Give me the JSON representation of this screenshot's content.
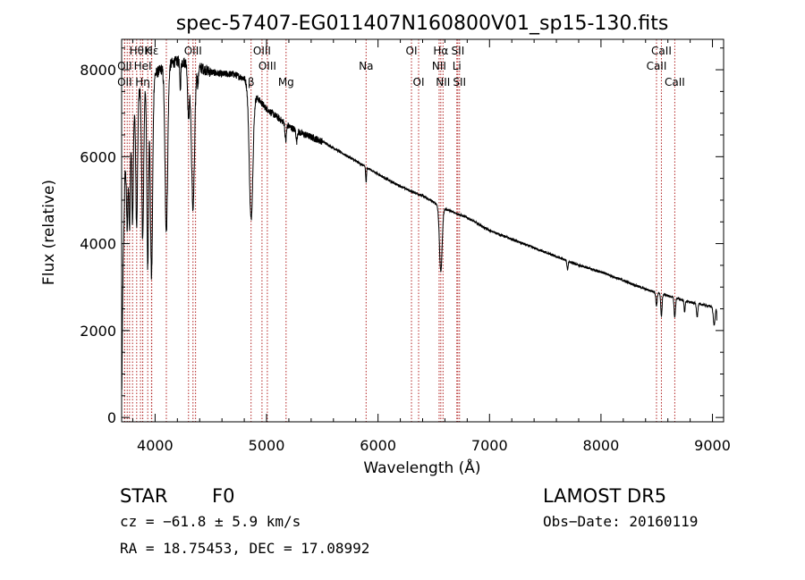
{
  "chart_data": {
    "type": "line",
    "title": "spec-57407-EG011407N160800V01_sp15-130.fits",
    "xlabel": "Wavelength (Å)",
    "ylabel": "Flux (relative)",
    "xlim": [
      3700,
      9100
    ],
    "ylim": [
      -100,
      8700
    ],
    "x_ticks": [
      "4000",
      "5000",
      "6000",
      "7000",
      "8000",
      "9000"
    ],
    "x_tick_values": [
      4000,
      5000,
      6000,
      7000,
      8000,
      9000
    ],
    "y_ticks": [
      "0",
      "2000",
      "4000",
      "6000",
      "8000"
    ],
    "y_tick_values": [
      0,
      2000,
      4000,
      6000,
      8000
    ],
    "continuum": [
      [
        3700,
        0
      ],
      [
        3710,
        3000
      ],
      [
        3730,
        5600
      ],
      [
        3760,
        6000
      ],
      [
        3800,
        7100
      ],
      [
        3850,
        7500
      ],
      [
        3900,
        7700
      ],
      [
        3950,
        7800
      ],
      [
        4000,
        7900
      ],
      [
        4100,
        8100
      ],
      [
        4200,
        8200
      ],
      [
        4300,
        8150
      ],
      [
        4400,
        8050
      ],
      [
        4500,
        7950
      ],
      [
        4600,
        7900
      ],
      [
        4700,
        7900
      ],
      [
        4800,
        7800
      ],
      [
        4900,
        7400
      ],
      [
        5000,
        7100
      ],
      [
        5100,
        6900
      ],
      [
        5200,
        6700
      ],
      [
        5300,
        6550
      ],
      [
        5400,
        6450
      ],
      [
        5500,
        6350
      ],
      [
        5600,
        6200
      ],
      [
        5700,
        6050
      ],
      [
        5800,
        5900
      ],
      [
        5900,
        5750
      ],
      [
        6000,
        5600
      ],
      [
        6100,
        5450
      ],
      [
        6200,
        5320
      ],
      [
        6300,
        5200
      ],
      [
        6400,
        5100
      ],
      [
        6500,
        4950
      ],
      [
        6600,
        4800
      ],
      [
        6700,
        4700
      ],
      [
        6800,
        4600
      ],
      [
        6900,
        4450
      ],
      [
        7000,
        4300
      ],
      [
        7200,
        4100
      ],
      [
        7400,
        3900
      ],
      [
        7600,
        3700
      ],
      [
        7800,
        3500
      ],
      [
        8000,
        3350
      ],
      [
        8200,
        3150
      ],
      [
        8400,
        2950
      ],
      [
        8600,
        2800
      ],
      [
        8800,
        2650
      ],
      [
        9000,
        2550
      ],
      [
        9040,
        2500
      ]
    ],
    "absorption_features": [
      {
        "x": 3750,
        "depth": 1500,
        "width": 6
      },
      {
        "x": 3771,
        "depth": 2000,
        "width": 6
      },
      {
        "x": 3798,
        "depth": 2500,
        "width": 7
      },
      {
        "x": 3835,
        "depth": 3000,
        "width": 8
      },
      {
        "x": 3889,
        "depth": 3500,
        "width": 9
      },
      {
        "x": 3934,
        "depth": 4300,
        "width": 8
      },
      {
        "x": 3968,
        "depth": 4600,
        "width": 10
      },
      {
        "x": 4101,
        "depth": 3800,
        "width": 12
      },
      {
        "x": 4226,
        "depth": 600,
        "width": 5
      },
      {
        "x": 4300,
        "depth": 1200,
        "width": 8
      },
      {
        "x": 4340,
        "depth": 3300,
        "width": 14
      },
      {
        "x": 4384,
        "depth": 400,
        "width": 5
      },
      {
        "x": 4861,
        "depth": 3000,
        "width": 16
      },
      {
        "x": 5172,
        "depth": 400,
        "width": 6
      },
      {
        "x": 5270,
        "depth": 250,
        "width": 5
      },
      {
        "x": 5893,
        "depth": 350,
        "width": 4
      },
      {
        "x": 6563,
        "depth": 1500,
        "width": 12
      },
      {
        "x": 7700,
        "depth": 200,
        "width": 5
      },
      {
        "x": 8498,
        "depth": 300,
        "width": 6
      },
      {
        "x": 8542,
        "depth": 500,
        "width": 6
      },
      {
        "x": 8662,
        "depth": 450,
        "width": 6
      },
      {
        "x": 8750,
        "depth": 250,
        "width": 5
      },
      {
        "x": 8863,
        "depth": 300,
        "width": 6
      },
      {
        "x": 9015,
        "depth": 400,
        "width": 8
      },
      {
        "x": 9045,
        "depth": 1800,
        "width": 3
      }
    ],
    "line_markers": [
      {
        "x": 3727,
        "label": "OII",
        "row": 1
      },
      {
        "x": 3727,
        "label": "OII",
        "row": 2
      },
      {
        "x": 3750,
        "label": "",
        "row": 0
      },
      {
        "x": 3771,
        "label": "",
        "row": 0
      },
      {
        "x": 3798,
        "label": "",
        "row": 0
      },
      {
        "x": 3835,
        "label": "Hθ",
        "row": 0
      },
      {
        "x": 3869,
        "label": "",
        "row": 0
      },
      {
        "x": 3889,
        "label": "HeI",
        "row": 1
      },
      {
        "x": 3889,
        "label": "Hη",
        "row": 2
      },
      {
        "x": 3934,
        "label": "K",
        "row": 0
      },
      {
        "x": 3968,
        "label": "",
        "row": 0
      },
      {
        "x": 3970,
        "label": "Hε",
        "row": 0
      },
      {
        "x": 4101,
        "label": "",
        "row": 0
      },
      {
        "x": 4300,
        "label": "",
        "row": 0
      },
      {
        "x": 4340,
        "label": "OIII",
        "row": 0
      },
      {
        "x": 4363,
        "label": "",
        "row": 0
      },
      {
        "x": 4861,
        "label": "β",
        "row": 2
      },
      {
        "x": 4959,
        "label": "OIII",
        "row": 0
      },
      {
        "x": 5007,
        "label": "OIII",
        "row": 1
      },
      {
        "x": 5175,
        "label": "Mg",
        "row": 2
      },
      {
        "x": 5893,
        "label": "Na",
        "row": 1
      },
      {
        "x": 6300,
        "label": "OI",
        "row": 0
      },
      {
        "x": 6364,
        "label": "OI",
        "row": 2
      },
      {
        "x": 6548,
        "label": "NII",
        "row": 1
      },
      {
        "x": 6563,
        "label": "Hα",
        "row": 0
      },
      {
        "x": 6583,
        "label": "NII",
        "row": 2
      },
      {
        "x": 6707,
        "label": "Li",
        "row": 1
      },
      {
        "x": 6716,
        "label": "SII",
        "row": 0
      },
      {
        "x": 6731,
        "label": "SII",
        "row": 2
      },
      {
        "x": 8498,
        "label": "CaII",
        "row": 1
      },
      {
        "x": 8542,
        "label": "CaII",
        "row": 0
      },
      {
        "x": 8662,
        "label": "CaII",
        "row": 2
      }
    ],
    "grid": false,
    "legend": "none"
  },
  "info": {
    "class_label": "STAR",
    "subclass": "F0",
    "survey": "LAMOST DR5",
    "velocity": "cz = −61.8 ± 5.9 km/s",
    "obs_date": "Obs−Date: 20160119",
    "coords": "RA =  18.75453, DEC =  17.08992"
  },
  "colors": {
    "spectrum": "#000000",
    "markers": "#b22222",
    "axes": "#000000"
  }
}
